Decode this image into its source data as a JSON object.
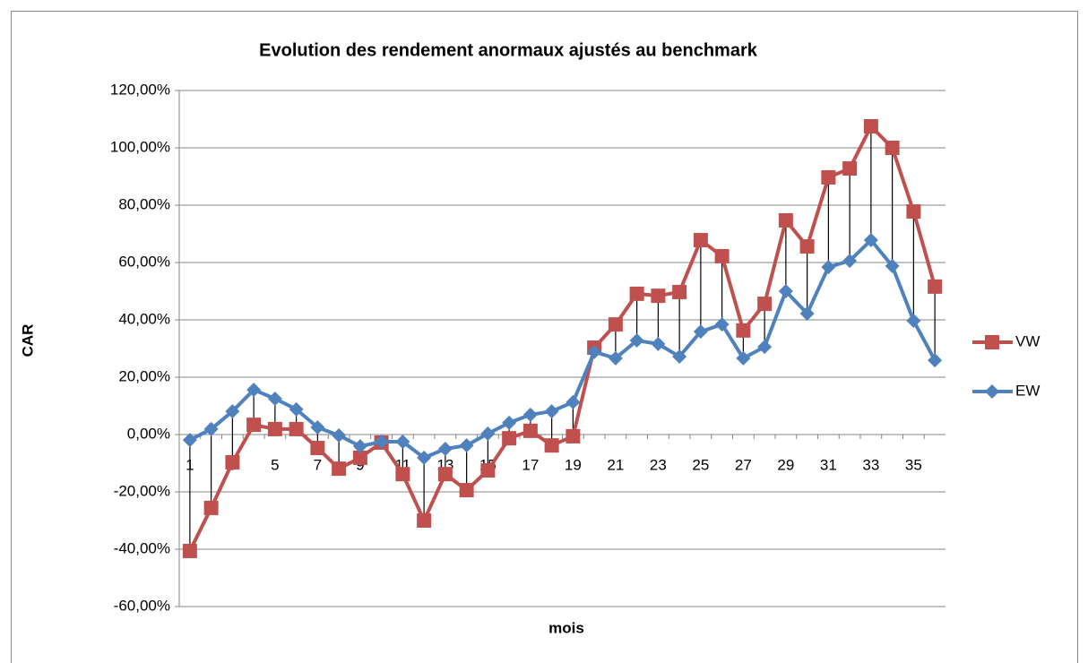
{
  "chart_data": {
    "type": "line",
    "title": "Evolution des rendement anormaux  ajustés au benchmark",
    "x_label": "mois",
    "y_label": "CAR",
    "categories": [
      1,
      null,
      3,
      null,
      5,
      null,
      7,
      null,
      9,
      null,
      11,
      null,
      13,
      null,
      15,
      null,
      17,
      null,
      19,
      null,
      21,
      null,
      23,
      null,
      25,
      null,
      27,
      null,
      29,
      null,
      31,
      null,
      33,
      null,
      35,
      null
    ],
    "series": [
      {
        "name": "VW",
        "color": "#c0504d",
        "marker": "square",
        "values": [
          -40.6,
          -25.6,
          -9.7,
          3.4,
          1.9,
          1.9,
          -4.7,
          -11.9,
          -8.1,
          -2.8,
          -13.8,
          -30,
          -13.8,
          -19.4,
          -12.5,
          -1.3,
          1.3,
          -3.8,
          -0.6,
          30.3,
          38.4,
          49.1,
          48.4,
          49.7,
          67.8,
          62.2,
          36.3,
          45.6,
          74.7,
          65.6,
          89.7,
          92.8,
          107.5,
          100,
          77.8,
          51.6
        ]
      },
      {
        "name": "EW",
        "color": "#4f81bd",
        "marker": "diamond",
        "values": [
          -1.9,
          1.9,
          8.1,
          15.6,
          12.5,
          8.8,
          2.5,
          -0.3,
          -4.1,
          -2.5,
          -2.5,
          -8.1,
          -5,
          -3.8,
          0.3,
          4.1,
          6.9,
          8.1,
          11.3,
          28.8,
          26.6,
          32.8,
          31.6,
          27.2,
          35.9,
          38.4,
          26.6,
          30.6,
          50,
          42.2,
          58.4,
          60.6,
          67.8,
          58.8,
          39.7,
          25.9
        ]
      }
    ],
    "ylim": [
      -60,
      120
    ],
    "yticks": [
      {
        "value": -60,
        "label": "-60,00%"
      },
      {
        "value": -40,
        "label": "-40,00%"
      },
      {
        "value": -20,
        "label": "-20,00%"
      },
      {
        "value": 0,
        "label": "0,00%"
      },
      {
        "value": 20,
        "label": "20,00%"
      },
      {
        "value": 40,
        "label": "40,00%"
      },
      {
        "value": 60,
        "label": "60,00%"
      },
      {
        "value": 80,
        "label": "80,00%"
      },
      {
        "value": 100,
        "label": "100,00%"
      },
      {
        "value": 120,
        "label": "120,00%"
      }
    ],
    "grid": true,
    "high_low_lines": true,
    "legend": "right"
  }
}
